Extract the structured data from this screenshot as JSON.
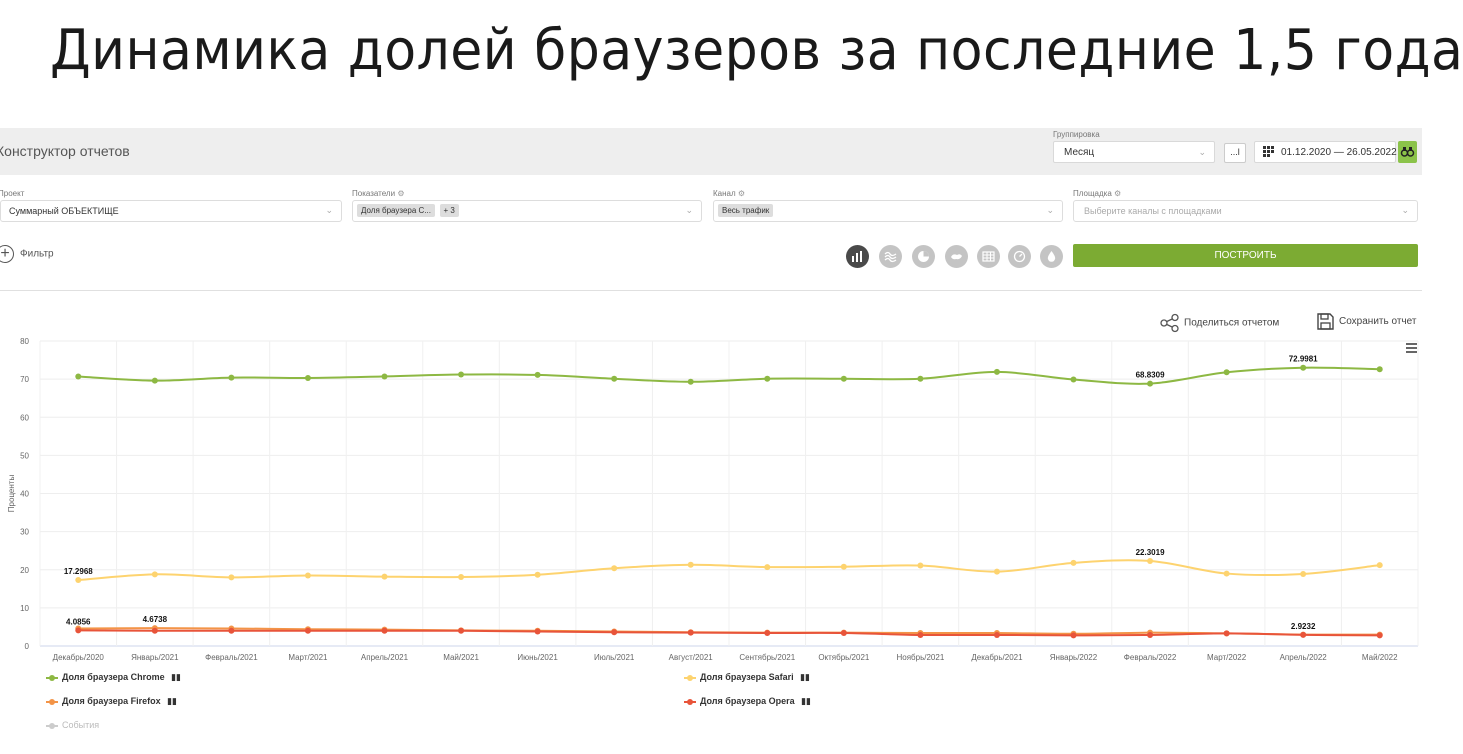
{
  "slide_title": "Динамика долей браузеров за последние 1,5 года",
  "app": {
    "title": "Конструктор отчетов",
    "grouping_label": "Группировка",
    "grouping_value": "Месяц",
    "dots_label": "...l",
    "date_range": "01.12.2020 — 26.05.2022"
  },
  "filters": {
    "project_label": "Проект",
    "project_value": "Суммарный ОБЪЕКТИЩЕ",
    "metrics_label": "Показатели",
    "metrics_chip": "Доля браузера С...",
    "metrics_more": "+ 3",
    "channel_label": "Канал",
    "channel_chip": "Весь трафик",
    "platform_label": "Площадка",
    "platform_placeholder": "Выберите каналы с площадками",
    "filter_label": "Фильтр",
    "build_label": "ПОСТРОИТЬ"
  },
  "actions": {
    "share_label": "Поделиться отчетом",
    "save_label": "Сохранить отчет"
  },
  "colors": {
    "chrome": "#8db843",
    "safari": "#fdd36f",
    "firefox": "#f39447",
    "opera": "#e8543a",
    "accent": "#7cab33"
  },
  "chart_data": {
    "type": "line",
    "ylabel": "Проценты",
    "ylim": [
      0,
      80
    ],
    "yticks": [
      0,
      10,
      20,
      30,
      40,
      50,
      60,
      70,
      80
    ],
    "grid": true,
    "categories": [
      "Декабрь/2020",
      "Январь/2021",
      "Февраль/2021",
      "Март/2021",
      "Апрель/2021",
      "Май/2021",
      "Июнь/2021",
      "Июль/2021",
      "Август/2021",
      "Сентябрь/2021",
      "Октябрь/2021",
      "Ноябрь/2021",
      "Декабрь/2021",
      "Январь/2022",
      "Февраль/2022",
      "Март/2022",
      "Апрель/2022",
      "Май/2022"
    ],
    "series": [
      {
        "name": "Доля браузера Chrome",
        "color": "#8db843",
        "values": [
          70.7,
          69.6,
          70.4,
          70.3,
          70.7,
          71.2,
          71.1,
          70.1,
          69.3,
          70.1,
          70.1,
          70.1,
          71.9,
          69.9,
          68.8309,
          71.8,
          72.9981,
          72.6
        ]
      },
      {
        "name": "Доля браузера Safari",
        "color": "#fdd36f",
        "values": [
          17.2968,
          18.8,
          18.0,
          18.5,
          18.2,
          18.1,
          18.7,
          20.4,
          21.3,
          20.7,
          20.8,
          21.1,
          19.5,
          21.8,
          22.3019,
          19.0,
          18.9,
          21.2
        ]
      },
      {
        "name": "Доля браузера Firefox",
        "color": "#f39447",
        "values": [
          4.6,
          4.6738,
          4.6,
          4.4,
          4.3,
          4.1,
          4.0,
          3.8,
          3.6,
          3.5,
          3.5,
          3.4,
          3.4,
          3.2,
          3.5,
          3.3,
          3.0,
          3.0
        ]
      },
      {
        "name": "Доля браузера Opera",
        "color": "#e8543a",
        "values": [
          4.0856,
          4.0,
          4.0,
          4.0,
          4.0,
          4.0,
          3.8,
          3.6,
          3.5,
          3.4,
          3.4,
          2.9,
          2.9,
          2.8,
          2.9,
          3.3,
          2.9232,
          2.8
        ]
      }
    ],
    "data_labels": [
      {
        "series": 0,
        "index": 14,
        "text": "68.8309"
      },
      {
        "series": 0,
        "index": 16,
        "text": "72.9981"
      },
      {
        "series": 1,
        "index": 0,
        "text": "17.2968"
      },
      {
        "series": 1,
        "index": 14,
        "text": "22.3019"
      },
      {
        "series": 3,
        "index": 0,
        "text": "4.0856"
      },
      {
        "series": 2,
        "index": 1,
        "text": "4.6738"
      },
      {
        "series": 3,
        "index": 16,
        "text": "2.9232"
      }
    ],
    "extra_legend": "События"
  }
}
